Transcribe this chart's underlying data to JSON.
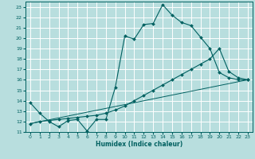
{
  "xlabel": "Humidex (Indice chaleur)",
  "background_color": "#b8dede",
  "grid_color": "#ffffff",
  "line_color": "#006060",
  "xlim": [
    -0.5,
    23.5
  ],
  "ylim": [
    11,
    23.5
  ],
  "xticks": [
    0,
    1,
    2,
    3,
    4,
    5,
    6,
    7,
    8,
    9,
    10,
    11,
    12,
    13,
    14,
    15,
    16,
    17,
    18,
    19,
    20,
    21,
    22,
    23
  ],
  "yticks": [
    11,
    12,
    13,
    14,
    15,
    16,
    17,
    18,
    19,
    20,
    21,
    22,
    23
  ],
  "line1_x": [
    0,
    1,
    2,
    3,
    4,
    5,
    6,
    7,
    8,
    9,
    10,
    11,
    12,
    13,
    14,
    15,
    16,
    17,
    18,
    19,
    20,
    21,
    22,
    23
  ],
  "line1_y": [
    13.8,
    12.8,
    12.0,
    11.5,
    12.1,
    12.2,
    11.1,
    12.2,
    12.2,
    15.3,
    20.2,
    19.9,
    21.3,
    21.4,
    23.2,
    22.2,
    21.5,
    21.2,
    20.1,
    19.0,
    16.7,
    16.2,
    16.0,
    16.0
  ],
  "line2_x": [
    0,
    1,
    2,
    3,
    4,
    5,
    6,
    7,
    8,
    9,
    10,
    11,
    12,
    13,
    14,
    15,
    16,
    17,
    18,
    19,
    20,
    21,
    22,
    23
  ],
  "line2_y": [
    11.8,
    12.0,
    12.1,
    12.2,
    12.3,
    12.4,
    12.5,
    12.6,
    12.8,
    13.1,
    13.5,
    14.0,
    14.5,
    15.0,
    15.5,
    16.0,
    16.5,
    17.0,
    17.5,
    18.0,
    19.0,
    16.8,
    16.2,
    16.0
  ],
  "line3_x": [
    0,
    23
  ],
  "line3_y": [
    11.8,
    16.0
  ]
}
